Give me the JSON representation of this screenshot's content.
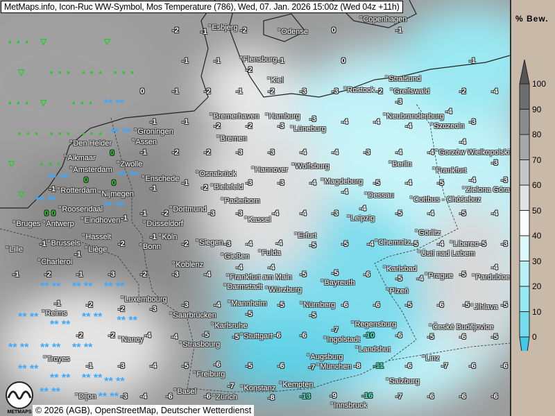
{
  "header": {
    "title": "MetMaps.info, Icon-Ruc WW-Symbol, Mos Temperature (786), Wed, 07. Jan. 2026 15:00z (Wed 04z +11h)"
  },
  "footer": {
    "attribution": "© 2026 (AGB), OpenStreetMap, Deutscher Wetterdienst",
    "logo_text": "METMAPS"
  },
  "legend": {
    "title": "% Bew.",
    "labels": [
      "100",
      "90",
      "80",
      "70",
      "60",
      "50",
      "40",
      "30",
      "20",
      "10",
      "0"
    ],
    "colors": [
      "#6e6e6e",
      "#8c8c8c",
      "#a8a8a8",
      "#c6c6c6",
      "#e2e2e2",
      "#fbfbfb",
      "#dcf8fb",
      "#b8f0f6",
      "#96e8f2",
      "#74dcea",
      "#52cfe6"
    ],
    "over_color": "#555555",
    "under_color": "#40c8e8"
  },
  "cities": [
    "Esbjerg",
    "Odense",
    "Copenhagen",
    "Flensburg",
    "Kiel",
    "Rostock",
    "Stralsund",
    "Greifswald",
    "Bremerhaven",
    "Hamburg",
    "Neubrandenburg",
    "Szczecin",
    "Groningen",
    "Assen",
    "Bremen",
    "Lüneburg",
    "Den Helder",
    "Alkmaar",
    "Amsterdam",
    "Zwolle",
    "Osnabrück",
    "Hannover",
    "Wolfsburg",
    "Berlin",
    "Frankfurt",
    "Gorzów Wielkopolski",
    "Rotterdam",
    "Enschede",
    "Bielefeld",
    "Magdeburg",
    "Zielona Góra",
    "Nijmegen",
    "Dessau",
    "Cottbus - Chóśebuz",
    "Paderborn",
    "Roosendaal",
    "Eindhoven",
    "Dortmund",
    "Kassel",
    "Leipzig",
    "Bruges",
    "Antwerp",
    "Düsseldorf",
    "Hasselt",
    "Brussels",
    "Köln",
    "Erfurt",
    "Chemnitz",
    "Görlitz",
    "Liberec",
    "Lille",
    "Liège",
    "Bonn",
    "Siegen",
    "Fulda",
    "Ústí nad Labem",
    "Charleroi",
    "Gießen",
    "Koblenz",
    "Karlsbad",
    "Frankfurt am Main",
    "Bayreuth",
    "Prague",
    "Pardubice",
    "Darmstadt",
    "Würzburg",
    "Plzeň",
    "Luxembourg",
    "Mannheim",
    "Nürnberg",
    "Jihlava",
    "Reims",
    "Saarbrücken",
    "Regensburg",
    "České Budějovice",
    "Karlsruhe",
    "Stuttgart",
    "Nancy",
    "Strasbourg",
    "Ingolstadt",
    "Landshut",
    "Linz",
    "Troyes",
    "Augsburg",
    "München",
    "Freiburg",
    "Basel",
    "Konstanz",
    "Zürich",
    "Kempten",
    "Salzburg",
    "Innsbruck",
    "Dijon"
  ],
  "temperature_grid": [
    [
      "",
      "",
      "",
      "",
      "",
      "-2",
      "-1",
      "-2",
      "",
      "",
      "0",
      "",
      "-1",
      "",
      "",
      ""
    ],
    [
      "",
      "",
      "",
      "",
      "",
      "-1",
      "-1",
      "-2",
      "-1",
      "",
      "0",
      "",
      "",
      "",
      "-1",
      ""
    ],
    [
      "",
      "",
      "",
      "",
      "0",
      "-1",
      "-2",
      "-1",
      "-2",
      "-3",
      "-3",
      "-2",
      "-3",
      "",
      "-2",
      "-4"
    ],
    [
      "",
      "",
      "",
      "",
      "-1",
      "-1",
      "-2",
      "-2",
      "-3",
      "-3",
      "-4",
      "-4",
      "-4",
      "-4",
      "-3",
      ""
    ],
    [
      "",
      "",
      "",
      "0",
      "-1",
      "-2",
      "-2",
      "-3",
      "-3",
      "-4",
      "-4",
      "-3",
      "-4",
      "-4",
      "-4",
      "-3"
    ],
    [
      "",
      "-1",
      "0",
      "0",
      "-1",
      "-1",
      "-2",
      "-3",
      "-3",
      "-4",
      "-4",
      "-5",
      "-4",
      "-5",
      "-4",
      "-3"
    ],
    [
      "",
      "0",
      "0",
      "-1",
      "-1",
      "-2",
      "-3",
      "-3",
      "-4",
      "-4",
      "-3",
      "-4",
      "-5",
      "-4",
      "-5",
      "-4"
    ],
    [
      "",
      "-1",
      "-1",
      "-2",
      "-1",
      "-2",
      "-3",
      "-4",
      "-4",
      "-5",
      "-5",
      "-4",
      "-5",
      "-4",
      "-5",
      "-3"
    ],
    [
      "-1",
      "-2",
      "-1",
      "-3",
      "-2",
      "-3",
      "-4",
      "-4",
      "-4",
      "-5",
      "-5",
      "-6",
      "-5",
      "-4",
      "-5",
      "-4"
    ],
    [
      "",
      "-1",
      "-2",
      "-2",
      "-3",
      "-3",
      "-4",
      "-5",
      "-5",
      "-5",
      "-6",
      "-6",
      "-5",
      "-6",
      "-5",
      "-5"
    ],
    [
      "",
      "",
      "-2",
      "-2",
      "-4",
      "-4",
      "-5",
      "-5",
      "-6",
      "-6",
      "-7",
      "-10",
      "-6",
      "-5",
      "-6",
      "-5"
    ],
    [
      "",
      "",
      "-1",
      "-3",
      "-4",
      "-5",
      "-6",
      "-5",
      "-6",
      "-7",
      "-8",
      "-11",
      "-6",
      "-7",
      "-6",
      "-6"
    ],
    [
      "",
      "",
      "",
      "-3",
      "-4",
      "-6",
      "-6",
      "-7",
      "-8",
      "-13",
      "-9",
      "-16",
      "-7",
      "-6",
      "-6",
      "-6"
    ]
  ],
  "ww_grid": [
    [
      "d",
      "r",
      "",
      "r",
      "",
      "",
      "",
      "",
      "",
      "",
      "",
      "",
      "",
      "",
      "",
      ""
    ],
    [
      "r",
      "d",
      "d",
      "d",
      "",
      "",
      "",
      "",
      "",
      "",
      "",
      "",
      "",
      "",
      "",
      ""
    ],
    [
      "d",
      "r",
      "d",
      "s",
      "",
      "",
      "",
      "",
      "",
      "",
      "",
      "",
      "",
      "",
      "",
      ""
    ],
    [
      "d",
      "d",
      "d",
      "s",
      "",
      "",
      "",
      "",
      "",
      "",
      "",
      "",
      "",
      "",
      "",
      ""
    ],
    [
      "r",
      "d",
      "s",
      "s",
      "",
      "",
      "",
      "",
      "",
      "",
      "",
      "",
      "",
      "",
      "",
      ""
    ],
    [
      "r",
      "s",
      "s",
      "",
      "",
      "",
      "",
      "",
      "",
      "",
      "",
      "",
      "",
      "",
      "",
      ""
    ],
    [
      "",
      "",
      "",
      "",
      "",
      "",
      "",
      "",
      "",
      "",
      "",
      "",
      "",
      "",
      "",
      ""
    ],
    [
      "",
      "",
      "",
      "",
      "",
      "",
      "",
      "",
      "",
      "",
      "",
      "",
      "",
      "",
      "",
      ""
    ],
    [
      "",
      "s",
      "s",
      "s",
      "",
      "",
      "",
      "",
      "",
      "",
      "",
      "",
      "",
      "",
      "",
      ""
    ],
    [
      "s",
      "s",
      "s",
      "s",
      "",
      "",
      "",
      "",
      "",
      "",
      "",
      "",
      "",
      "",
      "",
      ""
    ],
    [
      "s",
      "s",
      "s",
      "",
      "",
      "",
      "",
      "",
      "",
      "",
      "",
      "",
      "",
      "",
      "",
      ""
    ],
    [
      "s",
      "s",
      "s",
      "",
      "",
      "",
      "",
      "",
      "",
      "",
      "",
      "",
      "",
      "",
      "",
      ""
    ],
    [
      "s",
      "s",
      "s",
      "",
      "",
      "",
      "",
      "",
      "",
      "",
      "",
      "",
      "",
      "",
      "",
      ""
    ]
  ]
}
